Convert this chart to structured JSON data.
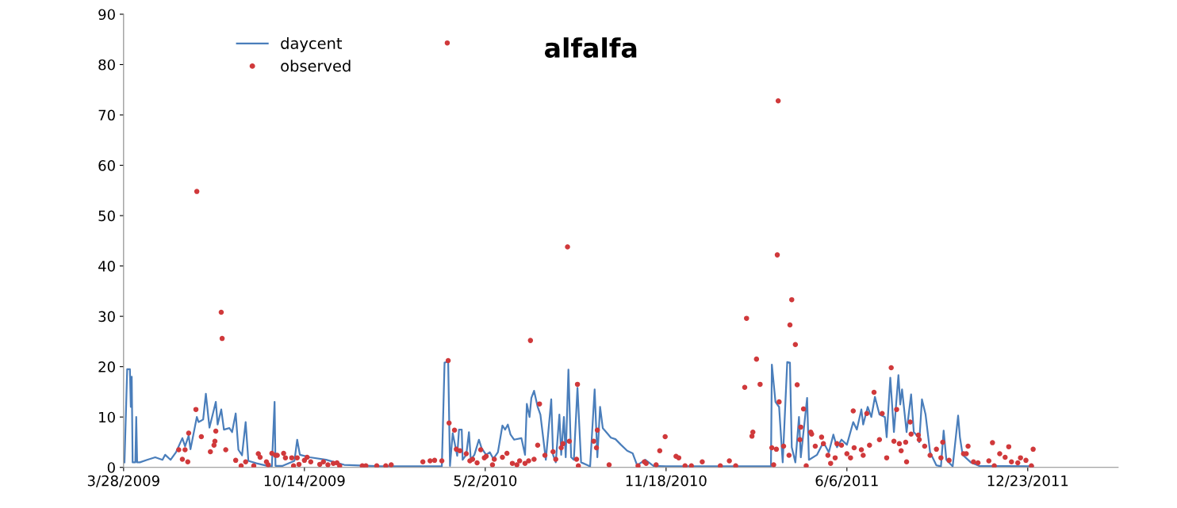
{
  "chart_data": {
    "type": "line",
    "title": "alfalfa",
    "xlim": [
      "2009-03-28",
      "2012-04-01"
    ],
    "ylim": [
      0,
      90
    ],
    "yticks": [
      0,
      10,
      20,
      30,
      40,
      50,
      60,
      70,
      80,
      90
    ],
    "xticks": [
      {
        "value": "2009-03-28",
        "label": "3/28/2009"
      },
      {
        "value": "2009-10-14",
        "label": "10/14/2009"
      },
      {
        "value": "2010-05-02",
        "label": "5/2/2010"
      },
      {
        "value": "2010-11-18",
        "label": "11/18/2010"
      },
      {
        "value": "2011-06-06",
        "label": "6/6/2011"
      },
      {
        "value": "2011-12-23",
        "label": "12/23/2011"
      }
    ],
    "grid": false,
    "legend": "top left",
    "series": [
      {
        "name": "daycent",
        "color": "#4a7ebb",
        "line_style": "solid",
        "x": [
          "2009-03-29",
          "2009-04-01",
          "2009-04-04",
          "2009-04-05",
          "2009-04-06",
          "2009-04-07",
          "2009-04-10",
          "2009-04-11",
          "2009-04-12",
          "2009-04-15",
          "2009-04-23",
          "2009-05-02",
          "2009-05-10",
          "2009-05-13",
          "2009-05-19",
          "2009-05-25",
          "2009-06-01",
          "2009-06-04",
          "2009-06-08",
          "2009-06-10",
          "2009-06-17",
          "2009-06-19",
          "2009-06-24",
          "2009-06-27",
          "2009-07-01",
          "2009-07-08",
          "2009-07-10",
          "2009-07-14",
          "2009-07-17",
          "2009-07-23",
          "2009-07-26",
          "2009-07-30",
          "2009-08-02",
          "2009-08-06",
          "2009-08-10",
          "2009-08-13",
          "2009-08-22",
          "2009-09-03",
          "2009-09-08",
          "2009-09-11",
          "2009-09-12",
          "2009-09-20",
          "2009-10-03",
          "2009-10-06",
          "2009-10-09",
          "2009-10-20",
          "2009-11-07",
          "2009-11-27",
          "2010-01-07",
          "2010-03-15",
          "2010-03-18",
          "2010-03-22",
          "2010-03-24",
          "2010-03-27",
          "2010-04-01",
          "2010-04-03",
          "2010-04-06",
          "2010-04-07",
          "2010-04-11",
          "2010-04-14",
          "2010-04-16",
          "2010-04-20",
          "2010-04-25",
          "2010-04-28",
          "2010-05-03",
          "2010-05-07",
          "2010-05-11",
          "2010-05-16",
          "2010-05-21",
          "2010-05-24",
          "2010-05-27",
          "2010-05-30",
          "2010-06-03",
          "2010-06-11",
          "2010-06-15",
          "2010-06-17",
          "2010-06-20",
          "2010-06-22",
          "2010-06-25",
          "2010-06-29",
          "2010-07-02",
          "2010-07-08",
          "2010-07-14",
          "2010-07-16",
          "2010-07-19",
          "2010-07-23",
          "2010-07-25",
          "2010-07-28",
          "2010-07-30",
          "2010-08-02",
          "2010-08-05",
          "2010-08-08",
          "2010-08-12",
          "2010-08-16",
          "2010-08-26",
          "2010-08-31",
          "2010-09-03",
          "2010-09-06",
          "2010-09-09",
          "2010-09-18",
          "2010-09-23",
          "2010-09-29",
          "2010-10-06",
          "2010-10-12",
          "2010-10-17",
          "2010-10-26",
          "2010-11-04",
          "2010-11-18",
          "2011-03-14",
          "2011-03-15",
          "2011-03-19",
          "2011-03-23",
          "2011-03-27",
          "2011-04-01",
          "2011-04-04",
          "2011-04-06",
          "2011-04-10",
          "2011-04-14",
          "2011-04-16",
          "2011-04-23",
          "2011-04-25",
          "2011-05-04",
          "2011-05-11",
          "2011-05-17",
          "2011-05-22",
          "2011-05-26",
          "2011-05-31",
          "2011-06-06",
          "2011-06-13",
          "2011-06-17",
          "2011-06-22",
          "2011-06-24",
          "2011-06-29",
          "2011-07-03",
          "2011-07-07",
          "2011-07-12",
          "2011-07-18",
          "2011-07-20",
          "2011-07-24",
          "2011-07-28",
          "2011-08-02",
          "2011-08-04",
          "2011-08-06",
          "2011-08-11",
          "2011-08-16",
          "2011-08-19",
          "2011-08-24",
          "2011-08-25",
          "2011-08-28",
          "2011-09-01",
          "2011-09-06",
          "2011-09-13",
          "2011-09-18",
          "2011-09-21",
          "2011-09-24",
          "2011-10-01",
          "2011-10-07",
          "2011-10-09",
          "2011-10-12",
          "2011-10-21",
          "2011-10-30",
          "2011-12-29"
        ],
        "values": [
          1,
          19.5,
          19.5,
          12,
          18,
          1,
          1,
          10,
          1,
          1,
          1.5,
          2,
          1.5,
          2.5,
          1.5,
          3,
          5.8,
          4.2,
          6.3,
          3.6,
          10,
          9,
          9.5,
          14.6,
          7.9,
          13,
          8.5,
          11.5,
          7.5,
          7.8,
          7,
          10.7,
          3.5,
          2.4,
          9,
          1.3,
          0.8,
          0.3,
          0.2,
          13,
          0.3,
          0.3,
          1.3,
          5.5,
          2.5,
          2,
          1.5,
          0.5,
          0.2,
          0.2,
          20.8,
          21,
          0.3,
          6.8,
          2.3,
          7.5,
          7.5,
          1.5,
          2.5,
          7,
          1.5,
          2.5,
          5.5,
          3.8,
          2.5,
          3,
          1.7,
          3,
          8.3,
          7.5,
          8.5,
          6.5,
          5.5,
          5.8,
          2.5,
          12.6,
          10,
          13.8,
          15.2,
          12,
          10.5,
          1.5,
          13.5,
          2.5,
          1,
          10.5,
          2.5,
          10,
          2,
          19.4,
          2,
          1.5,
          15.8,
          1,
          0.2,
          15.5,
          2,
          12,
          7.8,
          5.9,
          5.6,
          4.5,
          3.3,
          2.8,
          0.4,
          1.5,
          0.3,
          0.2,
          0.2,
          20.4,
          13,
          12,
          1,
          20.9,
          20.8,
          4,
          1,
          10,
          2,
          13.8,
          1.5,
          2.5,
          5,
          3,
          6.5,
          4,
          5.5,
          4.5,
          9,
          7.5,
          11.5,
          8.5,
          12,
          10,
          14,
          10.5,
          10,
          6,
          17.8,
          7,
          18.3,
          12.5,
          15.5,
          7,
          14.5,
          7,
          6,
          5,
          13.5,
          10.5,
          3,
          0.4,
          0.2,
          7.3,
          1.5,
          0.2,
          10.3,
          6,
          2.5,
          1,
          0.3,
          0.2
        ]
      },
      {
        "name": "observed",
        "type": "scatter",
        "color": "#d0393b",
        "marker": "circle",
        "x": [
          "2009-05-28",
          "2009-06-01",
          "2009-06-04",
          "2009-06-07",
          "2009-06-08",
          "2009-06-16",
          "2009-06-17",
          "2009-06-22",
          "2009-07-02",
          "2009-07-06",
          "2009-07-07",
          "2009-07-08",
          "2009-07-14",
          "2009-07-15",
          "2009-07-19",
          "2009-07-30",
          "2009-08-05",
          "2009-08-10",
          "2009-08-19",
          "2009-08-24",
          "2009-08-26",
          "2009-09-02",
          "2009-09-04",
          "2009-09-08",
          "2009-09-12",
          "2009-09-14",
          "2009-09-21",
          "2009-09-23",
          "2009-09-30",
          "2009-10-02",
          "2009-10-06",
          "2009-10-08",
          "2009-10-14",
          "2009-10-17",
          "2009-10-21",
          "2009-10-31",
          "2009-11-04",
          "2009-11-09",
          "2009-11-15",
          "2009-11-19",
          "2009-11-22",
          "2009-12-17",
          "2009-12-21",
          "2010-01-02",
          "2010-01-12",
          "2010-01-18",
          "2010-02-22",
          "2010-03-02",
          "2010-03-07",
          "2010-03-15",
          "2010-03-21",
          "2010-03-22",
          "2010-03-23",
          "2010-03-29",
          "2010-03-31",
          "2010-04-04",
          "2010-04-11",
          "2010-04-15",
          "2010-04-18",
          "2010-04-23",
          "2010-04-27",
          "2010-05-01",
          "2010-05-03",
          "2010-05-10",
          "2010-05-12",
          "2010-05-21",
          "2010-05-26",
          "2010-06-01",
          "2010-06-06",
          "2010-06-09",
          "2010-06-15",
          "2010-06-19",
          "2010-06-21",
          "2010-06-25",
          "2010-06-29",
          "2010-07-01",
          "2010-07-07",
          "2010-07-16",
          "2010-07-19",
          "2010-07-25",
          "2010-07-27",
          "2010-08-01",
          "2010-08-03",
          "2010-08-11",
          "2010-08-12",
          "2010-08-13",
          "2010-08-30",
          "2010-09-02",
          "2010-09-03",
          "2010-09-16",
          "2010-10-18",
          "2010-10-25",
          "2010-10-27",
          "2010-11-07",
          "2010-11-11",
          "2010-11-17",
          "2010-11-29",
          "2010-12-02",
          "2010-12-09",
          "2010-12-16",
          "2010-12-28",
          "2011-01-17",
          "2011-01-27",
          "2011-02-03",
          "2011-02-13",
          "2011-02-15",
          "2011-02-21",
          "2011-02-22",
          "2011-02-26",
          "2011-03-02",
          "2011-03-15",
          "2011-03-17",
          "2011-03-20",
          "2011-03-21",
          "2011-03-22",
          "2011-03-23",
          "2011-03-28",
          "2011-04-03",
          "2011-04-04",
          "2011-04-06",
          "2011-04-10",
          "2011-04-12",
          "2011-04-15",
          "2011-04-16",
          "2011-04-19",
          "2011-04-22",
          "2011-04-27",
          "2011-04-28",
          "2011-05-02",
          "2011-05-09",
          "2011-05-11",
          "2011-05-16",
          "2011-05-19",
          "2011-05-24",
          "2011-05-26",
          "2011-05-31",
          "2011-06-06",
          "2011-06-10",
          "2011-06-13",
          "2011-06-14",
          "2011-06-22",
          "2011-06-24",
          "2011-06-28",
          "2011-07-01",
          "2011-07-06",
          "2011-07-12",
          "2011-07-15",
          "2011-07-20",
          "2011-07-25",
          "2011-07-28",
          "2011-07-31",
          "2011-08-03",
          "2011-08-05",
          "2011-08-10",
          "2011-08-11",
          "2011-08-15",
          "2011-08-16",
          "2011-08-24",
          "2011-08-25",
          "2011-08-31",
          "2011-09-06",
          "2011-09-13",
          "2011-09-18",
          "2011-09-20",
          "2011-09-27",
          "2011-10-13",
          "2011-10-16",
          "2011-10-18",
          "2011-10-24",
          "2011-10-29",
          "2011-11-10",
          "2011-11-14",
          "2011-11-16",
          "2011-11-22",
          "2011-11-28",
          "2011-12-02",
          "2011-12-05",
          "2011-12-12",
          "2011-12-15",
          "2011-12-21",
          "2011-12-27",
          "2011-12-29"
        ],
        "values": [
          3.5,
          1.6,
          3.5,
          1.1,
          6.8,
          11.5,
          54.8,
          6.1,
          3.1,
          4.4,
          5.2,
          7.2,
          30.8,
          25.6,
          3.5,
          1.4,
          0.3,
          1.1,
          0.3,
          2.7,
          2,
          1.1,
          0.5,
          2.8,
          2.4,
          2.4,
          2.8,
          1.9,
          1.9,
          0.3,
          1.9,
          0.6,
          1.4,
          2,
          1.1,
          0.6,
          1.1,
          0.5,
          0.8,
          0.9,
          0.3,
          0.3,
          0.3,
          0.3,
          0.3,
          0.5,
          1.1,
          1.3,
          1.4,
          1.3,
          84.3,
          21.2,
          8.8,
          7.4,
          3.6,
          3.3,
          2.7,
          1.3,
          1.6,
          0.9,
          3.5,
          1.9,
          2.2,
          0.5,
          1.6,
          2,
          2.8,
          0.8,
          0.5,
          1.3,
          0.8,
          1.3,
          25.2,
          1.6,
          4.4,
          12.6,
          2.4,
          3.1,
          1.6,
          3.9,
          4.7,
          43.8,
          5.2,
          1.6,
          16.5,
          0.3,
          5.2,
          3.9,
          7.4,
          0.5,
          0.3,
          1.1,
          0.8,
          0.5,
          3.3,
          6.1,
          2.2,
          1.9,
          0.3,
          0.3,
          1.1,
          0.3,
          1.3,
          0.3,
          15.9,
          29.6,
          6.2,
          7,
          21.5,
          16.5,
          3.9,
          0.5,
          3.6,
          42.2,
          72.8,
          13,
          4.2,
          2.4,
          28.3,
          33.3,
          24.4,
          16.4,
          5.5,
          8,
          11.6,
          0.3,
          7,
          6.6,
          4.2,
          6,
          4.7,
          2.4,
          0.8,
          1.9,
          4.7,
          4.4,
          2.7,
          1.9,
          11.2,
          3.9,
          3.5,
          2.4,
          10.7,
          4.4,
          14.9,
          5.5,
          10.7,
          1.9,
          19.8,
          5.2,
          11.5,
          4.7,
          3.3,
          5,
          1.1,
          9,
          6.6,
          6.4,
          5.5,
          4.2,
          2.4,
          3.6,
          1.9,
          5,
          1.4,
          2.7,
          2.7,
          4.2,
          1.1,
          0.9,
          1.3,
          4.9,
          0.3,
          2.7,
          2,
          4.1,
          1.1,
          0.9,
          1.9,
          1.4,
          0.3,
          3.6
        ]
      }
    ]
  }
}
